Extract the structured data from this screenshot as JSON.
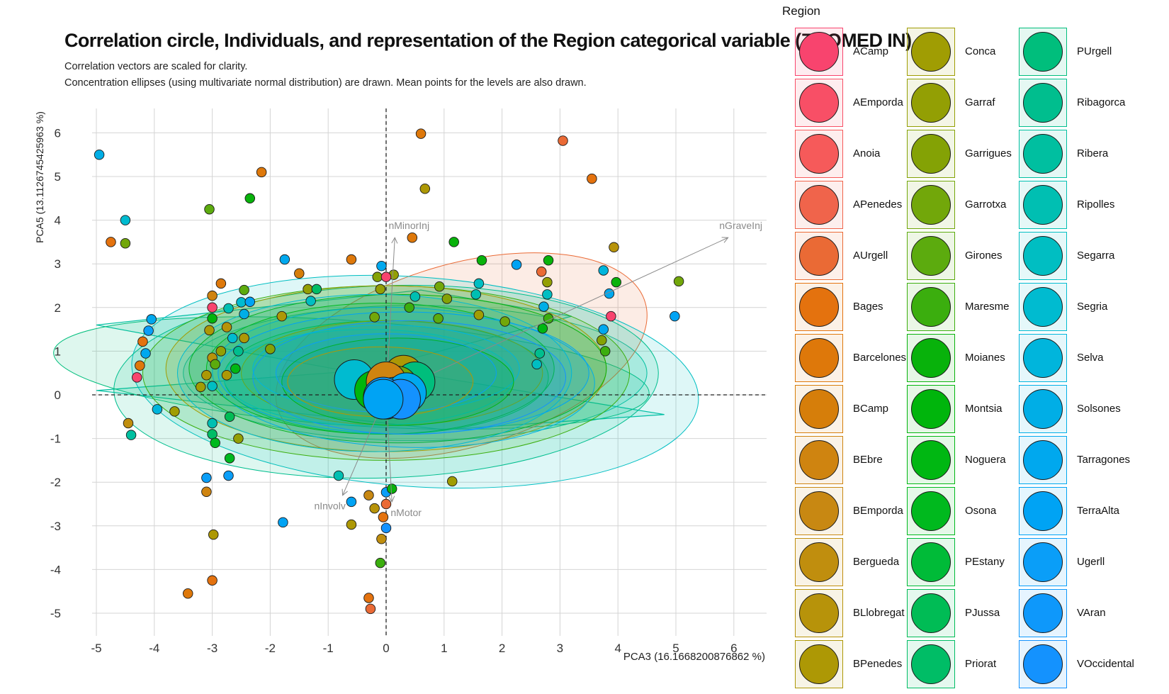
{
  "title": "Correlation circle, Individuals, and representation of the Region categorical variable (ZOOMED IN)",
  "subtitle_line1": "Correlation vectors are scaled for clarity.",
  "subtitle_line2": "Concentration ellipses (using multivariate normal distribution) are drawn. Mean points for the levels are also drawn.",
  "legend_title": "Region",
  "legend_items": [
    {
      "label": "ACamp",
      "color": "#F8446E"
    },
    {
      "label": "AEmporda",
      "color": "#F84F66"
    },
    {
      "label": "Anoia",
      "color": "#F65A5A"
    },
    {
      "label": "APenedes",
      "color": "#F0644B"
    },
    {
      "label": "AUrgell",
      "color": "#EA6A35"
    },
    {
      "label": "Bages",
      "color": "#E4720E"
    },
    {
      "label": "Barcelones",
      "color": "#DE780A"
    },
    {
      "label": "BCamp",
      "color": "#D67E0A"
    },
    {
      "label": "BEbre",
      "color": "#CF8410"
    },
    {
      "label": "BEmporda",
      "color": "#C88812"
    },
    {
      "label": "Bergueda",
      "color": "#C08E0E"
    },
    {
      "label": "BLlobregat",
      "color": "#B7930A"
    },
    {
      "label": "BPenedes",
      "color": "#AD9805"
    },
    {
      "label": "Conca",
      "color": "#A09D03"
    },
    {
      "label": "Garraf",
      "color": "#939F04"
    },
    {
      "label": "Garrigues",
      "color": "#84A205"
    },
    {
      "label": "Garrotxa",
      "color": "#72A70A"
    },
    {
      "label": "Girones",
      "color": "#5CAB0E"
    },
    {
      "label": "Maresme",
      "color": "#3BAE0E"
    },
    {
      "label": "Moianes",
      "color": "#08B20B"
    },
    {
      "label": "Montsia",
      "color": "#00B50C"
    },
    {
      "label": "Noguera",
      "color": "#00B712"
    },
    {
      "label": "Osona",
      "color": "#00B91E"
    },
    {
      "label": "PEstany",
      "color": "#00BB38"
    },
    {
      "label": "PJussa",
      "color": "#00BC55"
    },
    {
      "label": "Priorat",
      "color": "#00BD66"
    },
    {
      "label": "PUrgell",
      "color": "#00BE7C"
    },
    {
      "label": "Ribagorca",
      "color": "#00BE8E"
    },
    {
      "label": "Ribera",
      "color": "#00BFA0"
    },
    {
      "label": "Ripolles",
      "color": "#00BFB2"
    },
    {
      "label": "Segarra",
      "color": "#00BEC2"
    },
    {
      "label": "Segria",
      "color": "#00BBD0"
    },
    {
      "label": "Selva",
      "color": "#00B5DC"
    },
    {
      "label": "Solsones",
      "color": "#00AEE6"
    },
    {
      "label": "Tarragones",
      "color": "#00A8EE"
    },
    {
      "label": "TerraAlta",
      "color": "#00A3F4"
    },
    {
      "label": "Ugerll",
      "color": "#0A9EF8"
    },
    {
      "label": "VAran",
      "color": "#0E98FB"
    },
    {
      "label": "VOccidental",
      "color": "#1492FE"
    }
  ],
  "chart_data": {
    "type": "scatter",
    "xlabel": "PCA3 (16.1668200876862 %)",
    "ylabel": "PCA5 (13.1126745425963 %)",
    "xlim": [
      -5.5,
      6.5
    ],
    "ylim": [
      -5.6,
      6.6
    ],
    "x_ticks": [
      -5,
      -4,
      -3,
      -2,
      -1,
      0,
      1,
      2,
      3,
      4,
      5,
      6
    ],
    "y_ticks": [
      -5,
      -4,
      -3,
      -2,
      -1,
      0,
      1,
      2,
      3,
      4,
      5,
      6
    ],
    "grid": true,
    "legend_position": "right",
    "vectors": [
      {
        "name": "nMinorInj",
        "x": 0.15,
        "y": 3.6
      },
      {
        "name": "nGraveInj",
        "x": 5.9,
        "y": 3.6
      },
      {
        "name": "nInvolv",
        "x": -0.75,
        "y": -2.3
      },
      {
        "name": "nMotor",
        "x": 0.1,
        "y": -2.45
      }
    ],
    "points": [
      [
        -4.95,
        5.5,
        33
      ],
      [
        -4.5,
        4.0,
        31
      ],
      [
        -4.75,
        3.5,
        5
      ],
      [
        -4.5,
        3.47,
        16
      ],
      [
        0.6,
        5.98,
        6
      ],
      [
        -2.15,
        5.1,
        6
      ],
      [
        -2.35,
        4.5,
        19
      ],
      [
        -3.05,
        4.25,
        17
      ],
      [
        0.67,
        4.72,
        12
      ],
      [
        3.05,
        5.82,
        4
      ],
      [
        3.55,
        4.95,
        5
      ],
      [
        0.45,
        3.6,
        6
      ],
      [
        1.17,
        3.5,
        19
      ],
      [
        3.93,
        3.38,
        11
      ],
      [
        -0.6,
        3.1,
        6
      ],
      [
        -1.75,
        3.1,
        34
      ],
      [
        -0.08,
        2.95,
        34
      ],
      [
        0.13,
        2.75,
        14
      ],
      [
        -0.15,
        2.7,
        15
      ],
      [
        0.0,
        2.7,
        0
      ],
      [
        1.65,
        3.08,
        19
      ],
      [
        2.25,
        2.98,
        35
      ],
      [
        2.8,
        3.08,
        19
      ],
      [
        2.68,
        2.82,
        4
      ],
      [
        3.75,
        2.85,
        32
      ],
      [
        3.97,
        2.58,
        19
      ],
      [
        5.05,
        2.6,
        16
      ],
      [
        -2.85,
        2.55,
        6
      ],
      [
        -1.5,
        2.78,
        7
      ],
      [
        -2.45,
        2.4,
        17
      ],
      [
        -3.0,
        2.27,
        8
      ],
      [
        -1.35,
        2.42,
        14
      ],
      [
        -1.2,
        2.42,
        25
      ],
      [
        -0.1,
        2.42,
        14
      ],
      [
        0.5,
        2.25,
        29
      ],
      [
        0.92,
        2.48,
        16
      ],
      [
        1.6,
        2.55,
        30
      ],
      [
        2.78,
        2.58,
        14
      ],
      [
        2.78,
        2.3,
        30
      ],
      [
        3.85,
        2.32,
        34
      ],
      [
        -3.0,
        2.0,
        0
      ],
      [
        -2.72,
        1.98,
        29
      ],
      [
        -2.5,
        2.12,
        31
      ],
      [
        -2.35,
        2.13,
        35
      ],
      [
        -1.3,
        2.15,
        30
      ],
      [
        0.4,
        2.0,
        18
      ],
      [
        1.05,
        2.2,
        15
      ],
      [
        1.55,
        2.3,
        29
      ],
      [
        2.72,
        2.02,
        33
      ],
      [
        3.88,
        1.8,
        0
      ],
      [
        4.98,
        1.8,
        35
      ],
      [
        -4.05,
        1.73,
        34
      ],
      [
        -3.0,
        1.75,
        20
      ],
      [
        -2.45,
        1.85,
        33
      ],
      [
        -1.8,
        1.8,
        12
      ],
      [
        -0.2,
        1.78,
        16
      ],
      [
        0.9,
        1.75,
        17
      ],
      [
        1.6,
        1.83,
        13
      ],
      [
        2.05,
        1.68,
        16
      ],
      [
        2.7,
        1.52,
        21
      ],
      [
        2.8,
        1.75,
        18
      ],
      [
        3.75,
        1.5,
        34
      ],
      [
        -4.1,
        1.47,
        36
      ],
      [
        -3.05,
        1.48,
        12
      ],
      [
        -2.75,
        1.55,
        11
      ],
      [
        -2.65,
        1.3,
        31
      ],
      [
        -2.45,
        1.3,
        12
      ],
      [
        -4.2,
        1.22,
        5
      ],
      [
        -4.15,
        0.95,
        34
      ],
      [
        -3.0,
        0.85,
        11
      ],
      [
        -2.85,
        1.0,
        14
      ],
      [
        -2.55,
        1.0,
        27
      ],
      [
        -2.0,
        1.05,
        15
      ],
      [
        3.72,
        1.25,
        15
      ],
      [
        3.78,
        1.0,
        18
      ],
      [
        -4.25,
        0.67,
        6
      ],
      [
        -4.3,
        0.4,
        0
      ],
      [
        -3.1,
        0.45,
        12
      ],
      [
        -2.95,
        0.7,
        17
      ],
      [
        -2.6,
        0.6,
        21
      ],
      [
        -3.2,
        0.18,
        13
      ],
      [
        -3.0,
        0.2,
        30
      ],
      [
        -2.75,
        0.45,
        12
      ],
      [
        2.65,
        0.95,
        27
      ],
      [
        2.6,
        0.7,
        30
      ],
      [
        -3.95,
        -0.33,
        32
      ],
      [
        -3.65,
        -0.38,
        13
      ],
      [
        -4.45,
        -0.65,
        10
      ],
      [
        -4.4,
        -0.92,
        28
      ],
      [
        -3.0,
        -0.65,
        29
      ],
      [
        -2.7,
        -0.5,
        24
      ],
      [
        -3.0,
        -0.9,
        25
      ],
      [
        -2.95,
        -1.1,
        22
      ],
      [
        -2.55,
        -1.0,
        14
      ],
      [
        -2.7,
        -1.45,
        22
      ],
      [
        -3.1,
        -1.9,
        36
      ],
      [
        -2.72,
        -1.85,
        36
      ],
      [
        -3.1,
        -2.22,
        8
      ],
      [
        -0.82,
        -1.85,
        29
      ],
      [
        -0.6,
        -2.45,
        35
      ],
      [
        1.14,
        -1.98,
        13
      ],
      [
        -0.3,
        -2.3,
        9
      ],
      [
        0.0,
        -2.23,
        36
      ],
      [
        0.1,
        -2.15,
        19
      ],
      [
        0.0,
        -2.5,
        4
      ],
      [
        -0.2,
        -2.6,
        11
      ],
      [
        -0.05,
        -2.8,
        5
      ],
      [
        0.0,
        -3.05,
        38
      ],
      [
        -0.6,
        -2.97,
        12
      ],
      [
        -0.08,
        -3.3,
        10
      ],
      [
        -1.78,
        -2.92,
        35
      ],
      [
        -2.98,
        -3.2,
        12
      ],
      [
        -0.1,
        -3.85,
        18
      ],
      [
        -3.42,
        -4.55,
        6
      ],
      [
        -3.0,
        -4.25,
        5
      ],
      [
        -0.3,
        -4.65,
        5
      ],
      [
        -0.27,
        -4.9,
        4
      ]
    ],
    "ellipses": [
      [
        -0.6,
        0.5,
        5.15,
        1.2,
        4,
        26
      ],
      [
        0.5,
        0.5,
        4.0,
        1.55,
        0,
        28
      ],
      [
        1.3,
        0.9,
        3.3,
        2.1,
        -16,
        4
      ],
      [
        0.5,
        0.3,
        4.9,
        2.4,
        4,
        30
      ],
      [
        0.0,
        0.3,
        4.7,
        2.2,
        -2,
        27
      ],
      [
        0.0,
        0.5,
        4.2,
        2.0,
        0,
        18
      ],
      [
        0.0,
        0.6,
        3.8,
        1.9,
        0,
        13
      ],
      [
        0.2,
        0.6,
        3.6,
        1.7,
        0,
        19
      ],
      [
        -0.2,
        0.5,
        3.4,
        1.8,
        0,
        31
      ],
      [
        0.3,
        0.4,
        3.3,
        1.6,
        2,
        33
      ],
      [
        -0.1,
        0.6,
        3.0,
        1.5,
        0,
        22
      ],
      [
        0.3,
        0.5,
        3.2,
        1.4,
        0,
        35
      ],
      [
        0.0,
        0.4,
        2.8,
        1.3,
        0,
        24
      ],
      [
        0.1,
        0.5,
        2.6,
        1.2,
        0,
        16
      ],
      [
        0.4,
        0.4,
        2.7,
        1.3,
        0,
        38
      ],
      [
        -0.3,
        0.4,
        2.5,
        1.1,
        0,
        29
      ],
      [
        0.0,
        0.6,
        2.3,
        1.0,
        0,
        32
      ],
      [
        0.2,
        0.3,
        2.0,
        1.0,
        0,
        20
      ],
      [
        0.0,
        0.5,
        1.9,
        0.9,
        0,
        36
      ],
      [
        -0.1,
        0.3,
        1.6,
        0.8,
        0,
        12
      ]
    ],
    "mean_points": [
      [
        -0.55,
        0.35,
        31
      ],
      [
        0.3,
        0.45,
        12
      ],
      [
        0.5,
        0.3,
        26
      ],
      [
        0.2,
        0.2,
        16
      ],
      [
        -0.2,
        0.1,
        20
      ],
      [
        0.0,
        0.3,
        8
      ],
      [
        0.15,
        -0.05,
        33
      ],
      [
        0.35,
        0.05,
        34
      ],
      [
        0.0,
        -0.1,
        36
      ],
      [
        -0.05,
        -0.05,
        37
      ],
      [
        0.25,
        -0.1,
        38
      ],
      [
        -0.05,
        -0.1,
        35
      ]
    ]
  }
}
